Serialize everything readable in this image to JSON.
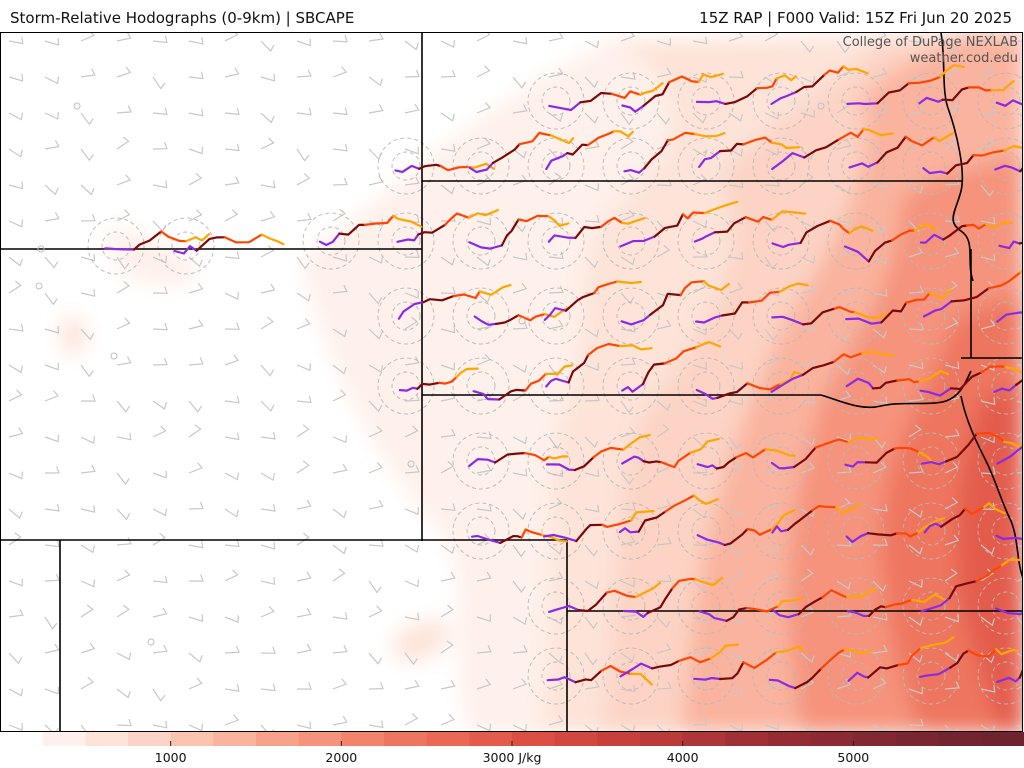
{
  "header": {
    "title_left": "Storm-Relative Hodographs (0-9km) | SBCAPE",
    "title_right": "15Z RAP | F000 Valid: 15Z Fri Jun 20 2025"
  },
  "credit": {
    "line1": "College of DuPage NEXLAB",
    "line2": "weather.cod.edu"
  },
  "colorbar": {
    "variable": "SBCAPE",
    "unit": "J/kg",
    "min": 0,
    "max": 6000,
    "step": 250,
    "ticks": [
      {
        "value": 1000,
        "label": "1000"
      },
      {
        "value": 2000,
        "label": "2000"
      },
      {
        "value": 3000,
        "label": "3000 J/kg"
      },
      {
        "value": 4000,
        "label": "4000"
      },
      {
        "value": 5000,
        "label": "5000"
      }
    ],
    "colors": [
      "#ffffff",
      "#fef0ea",
      "#fde3d8",
      "#fcd3c4",
      "#fbc4b0",
      "#f9b39e",
      "#f7a38c",
      "#f5937b",
      "#f2846b",
      "#ee765f",
      "#ea6854",
      "#e35c4b",
      "#dc5044",
      "#d2473f",
      "#c7403c",
      "#bb3a3a",
      "#ae3538",
      "#a13036",
      "#952c34",
      "#8b2a33",
      "#822832",
      "#7a2631",
      "#742430",
      "#6f232f"
    ]
  },
  "hodograph_colors": {
    "layer_0_1km": "#8a2be2",
    "layer_1_3km": "#7a0a0a",
    "layer_3_6km": "#ff4500",
    "layer_6_9km": "#ffa500"
  }
}
